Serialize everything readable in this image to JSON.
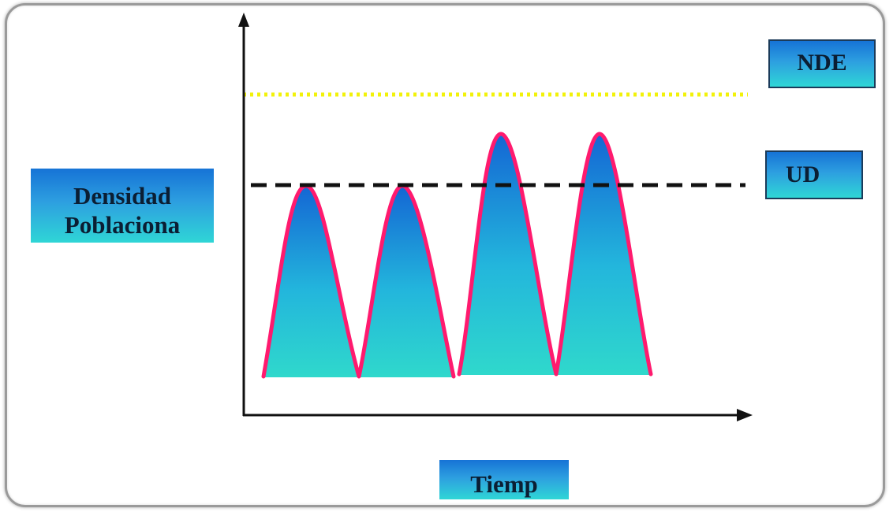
{
  "diagram": {
    "y_axis_label": "Densidad Poblaciona",
    "x_axis_label": "Tiemp",
    "threshold_labels": {
      "nde": "NDE",
      "ud": "UD"
    }
  },
  "colors": {
    "peak_outline": "#ff1a6e",
    "peak_fill_top": "#1a6fd8",
    "peak_fill_bottom": "#2fd8d0",
    "nde_line": "#f2f20a",
    "ud_line": "#111111",
    "axis": "#111111"
  }
}
